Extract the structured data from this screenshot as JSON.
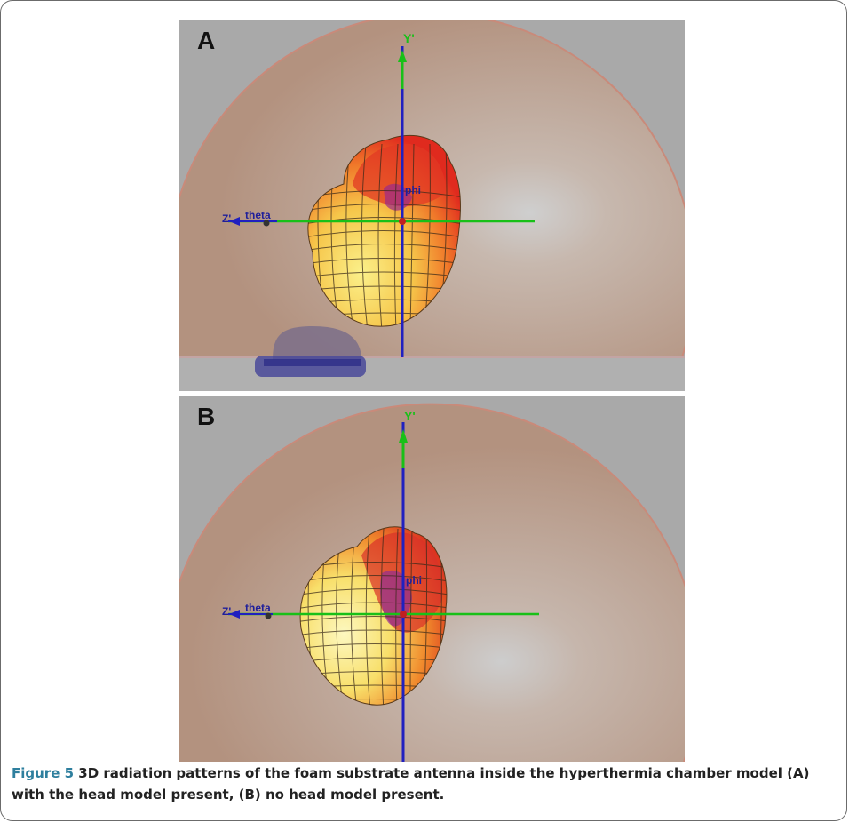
{
  "figure": {
    "panels": [
      {
        "letter": "A",
        "y_axis_label": "Y'",
        "z_axis_label": "Z'",
        "theta_label": "theta",
        "phi_label": "phi"
      },
      {
        "letter": "B",
        "y_axis_label": "Y'",
        "z_axis_label": "Z'",
        "theta_label": "theta",
        "phi_label": "phi"
      }
    ],
    "caption_label": "Figure 5",
    "caption_text": " 3D radiation patterns of the foam substrate antenna inside the hyperthermia chamber model (A) with the head model present, (B) no head model present."
  },
  "colors": {
    "caption_label": "#2e7f9e",
    "background_gray": "#a9a9a9",
    "dome": "#b89a8a",
    "y_axis_green": "#18c018",
    "vertical_axis_blue": "#2020c0",
    "pattern_red": "#e03020",
    "pattern_yellow": "#f5e060"
  }
}
